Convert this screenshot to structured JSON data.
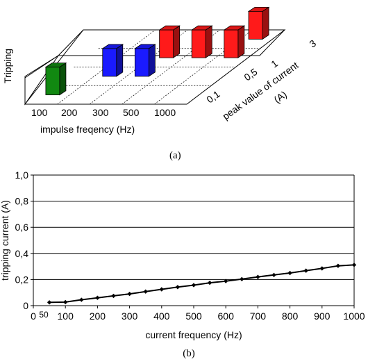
{
  "panel_a": {
    "caption": "(a)",
    "chart_data": {
      "type": "bar",
      "ylabel": "Tripping",
      "xlabel": "impulse freqency (Hz)",
      "zlabel_line1": "peak value of current",
      "zlabel_line2": "(A)",
      "x_categories": [
        "100",
        "200",
        "300",
        "500",
        "1000"
      ],
      "z_categories": [
        "0,1",
        "0,5",
        "1",
        "3"
      ],
      "bars": [
        {
          "x": "100",
          "z": "0,1",
          "tripping": 1,
          "color": "#118811"
        },
        {
          "x": "200",
          "z": "0,5",
          "tripping": 1,
          "color": "#1a1aff"
        },
        {
          "x": "300",
          "z": "0,5",
          "tripping": 1,
          "color": "#1a1aff"
        },
        {
          "x": "300",
          "z": "1",
          "tripping": 1,
          "color": "#ff1a1a"
        },
        {
          "x": "500",
          "z": "1",
          "tripping": 1,
          "color": "#ff1a1a"
        },
        {
          "x": "1000",
          "z": "1",
          "tripping": 1,
          "color": "#ff1a1a"
        },
        {
          "x": "1000",
          "z": "3",
          "tripping": 1,
          "color": "#ff1a1a"
        }
      ]
    }
  },
  "panel_b": {
    "caption": "(b)",
    "chart_data": {
      "type": "line",
      "xlabel": "current frequency (Hz)",
      "ylabel": "tripping current (A)",
      "xlim": [
        0,
        1000
      ],
      "ylim": [
        0,
        1.0
      ],
      "xticks": [
        "0",
        "100",
        "200",
        "300",
        "400",
        "500",
        "600",
        "700",
        "800",
        "900",
        "1000"
      ],
      "x_extra_tick": "50",
      "yticks": [
        "0",
        "0,2",
        "0,4",
        "0,6",
        "0,8",
        "1,0"
      ],
      "x": [
        50,
        100,
        150,
        200,
        250,
        300,
        350,
        400,
        450,
        500,
        550,
        600,
        650,
        700,
        750,
        800,
        850,
        900,
        950,
        1000
      ],
      "y": [
        0.025,
        0.027,
        0.045,
        0.06,
        0.075,
        0.09,
        0.108,
        0.125,
        0.142,
        0.157,
        0.175,
        0.188,
        0.203,
        0.22,
        0.235,
        0.25,
        0.268,
        0.285,
        0.305,
        0.312
      ],
      "grid": true,
      "series_color": "#000000"
    }
  }
}
